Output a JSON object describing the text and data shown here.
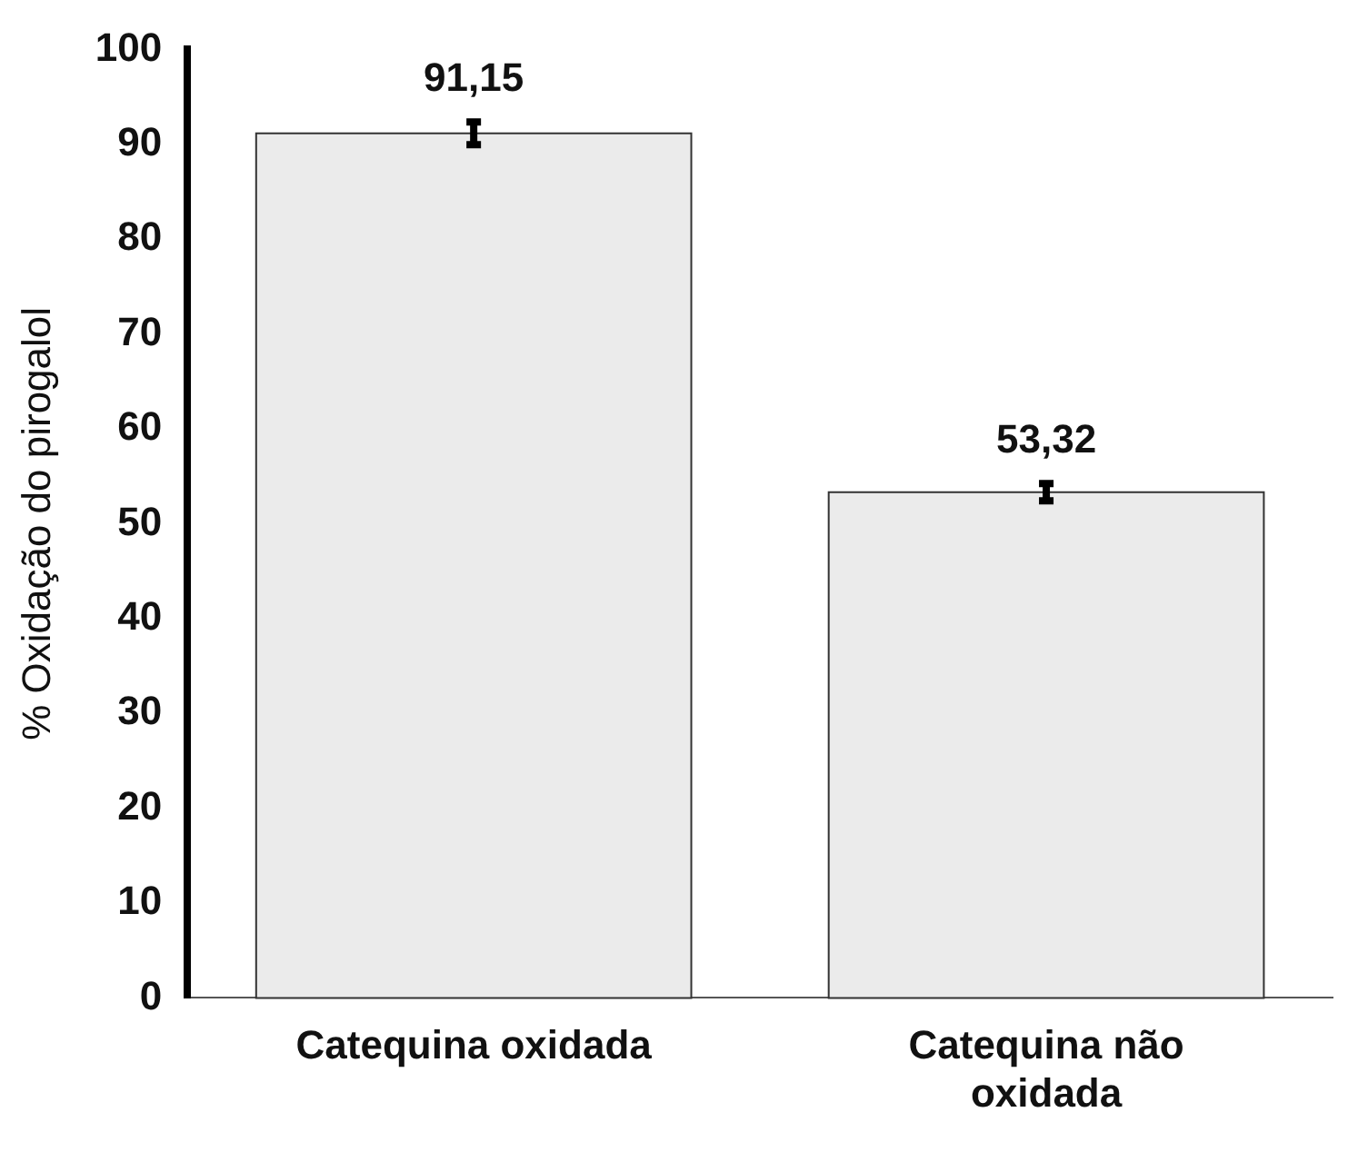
{
  "chart_data": {
    "type": "bar",
    "ylabel": "% Oxidação do pirogalol",
    "categories": [
      "Catequina oxidada",
      "Catequina não oxidada"
    ],
    "values": [
      91.15,
      53.32
    ],
    "value_labels": [
      "91,15",
      "53,32"
    ],
    "errors": [
      1.2,
      0.9
    ],
    "color": "#ebebeb",
    "ylim": [
      0,
      100
    ],
    "yticks": [
      0,
      10,
      20,
      30,
      40,
      50,
      60,
      70,
      80,
      90,
      100
    ],
    "grid": false,
    "legend": false
  }
}
